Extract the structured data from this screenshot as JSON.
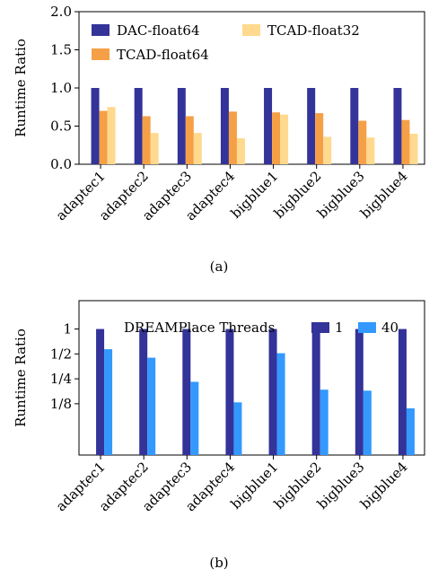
{
  "chart_data": [
    {
      "type": "bar",
      "caption": "(a)",
      "ylabel": "Runtime Ratio",
      "ylim": [
        0,
        2.0
      ],
      "yticks": [
        "0.0",
        "0.5",
        "1.0",
        "1.5",
        "2.0"
      ],
      "ytick_values": [
        0,
        0.5,
        1.0,
        1.5,
        2.0
      ],
      "grid": false,
      "legend": "top-left",
      "categories": [
        "adaptec1",
        "adaptec2",
        "adaptec3",
        "adaptec4",
        "bigblue1",
        "bigblue2",
        "bigblue3",
        "bigblue4"
      ],
      "series": [
        {
          "name": "DAC-float64",
          "color": "#333399",
          "values": [
            1.0,
            1.0,
            1.0,
            1.0,
            1.0,
            1.0,
            1.0,
            1.0
          ]
        },
        {
          "name": "TCAD-float64",
          "color": "#F5A046",
          "values": [
            0.7,
            0.63,
            0.63,
            0.69,
            0.68,
            0.67,
            0.57,
            0.58
          ]
        },
        {
          "name": "TCAD-float32",
          "color": "#FFD98E",
          "values": [
            0.75,
            0.41,
            0.41,
            0.34,
            0.65,
            0.36,
            0.35,
            0.4
          ]
        }
      ]
    },
    {
      "type": "bar",
      "caption": "(b)",
      "ylabel": "Runtime Ratio",
      "yscale": "log2",
      "ylim": [
        0.03,
        2.2
      ],
      "yticks": [
        "1",
        "1/2",
        "1/4",
        "1/8"
      ],
      "ytick_values": [
        1,
        0.5,
        0.25,
        0.125
      ],
      "grid": false,
      "legend": "top-center",
      "legend_title": "DREAMPlace Threads",
      "categories": [
        "adaptec1",
        "adaptec2",
        "adaptec3",
        "adaptec4",
        "bigblue1",
        "bigblue2",
        "bigblue3",
        "bigblue4"
      ],
      "series": [
        {
          "name": "1",
          "color": "#333399",
          "values": [
            1,
            1,
            1,
            1,
            1,
            1,
            1,
            1
          ]
        },
        {
          "name": "40",
          "color": "#3399FF",
          "values": [
            0.57,
            0.45,
            0.23,
            0.13,
            0.51,
            0.185,
            0.18,
            0.11
          ]
        }
      ]
    }
  ]
}
